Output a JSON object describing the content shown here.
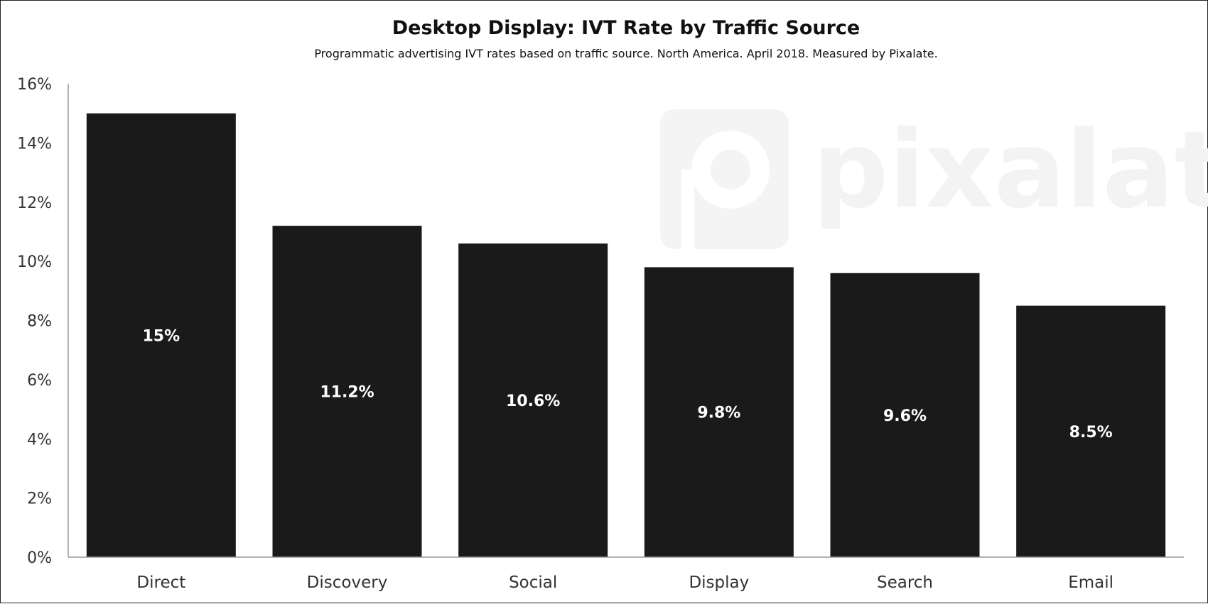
{
  "chart_data": {
    "type": "bar",
    "title": "Desktop Display: IVT Rate by Traffic Source",
    "subtitle": "Programmatic advertising IVT rates based on traffic source. North America. April 2018. Measured by Pixalate.",
    "categories": [
      "Direct",
      "Discovery",
      "Social",
      "Display",
      "Search",
      "Email"
    ],
    "values": [
      15,
      11.2,
      10.6,
      9.8,
      9.6,
      8.5
    ],
    "data_labels": [
      "15%",
      "11.2%",
      "10.6%",
      "9.8%",
      "9.6%",
      "8.5%"
    ],
    "ylim": [
      0,
      16
    ],
    "y_ticks": [
      0,
      2,
      4,
      6,
      8,
      10,
      12,
      14,
      16
    ],
    "y_tick_labels": [
      "0%",
      "2%",
      "4%",
      "6%",
      "8%",
      "10%",
      "12%",
      "14%",
      "16%"
    ],
    "xlabel": "",
    "ylabel": "",
    "grid": false,
    "legend": "none",
    "bar_color": "#1b1a1a",
    "label_color": "#ffffff"
  },
  "watermark": {
    "text": "pixalate",
    "icon": "pixalate-logo-icon",
    "color": "#f3f3f3"
  }
}
